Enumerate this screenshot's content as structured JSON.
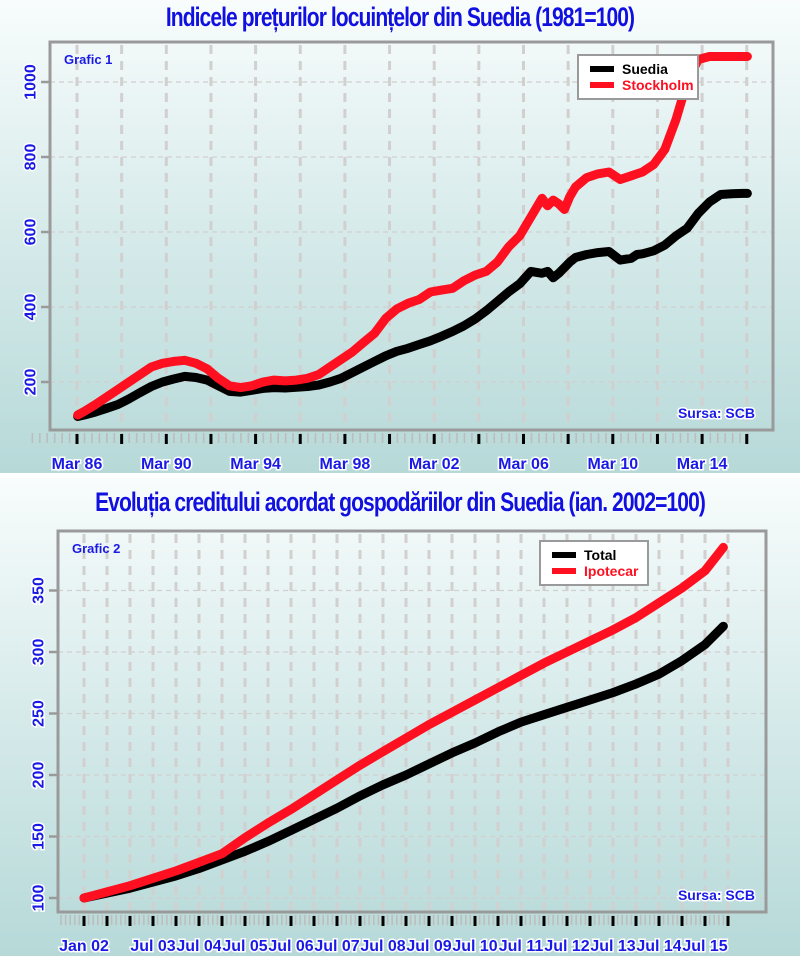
{
  "colors": {
    "series_black": "#000000",
    "series_red": "#ff1020",
    "title_blue": "#1010e0",
    "frame_gray": "#9a9a9a",
    "grid_gray": "#d2cfcf"
  },
  "chart_data": [
    {
      "type": "line",
      "title": "Indicele prețurilor locuințelor din Suedia (1981=100)",
      "panel_label": "Grafic 1",
      "source": "Sursa: SCB",
      "xlabel": "",
      "ylabel": "",
      "x_tick_labels": [
        "Mar 86",
        "Mar 90",
        "Mar 94",
        "Mar 98",
        "Mar 02",
        "Mar 06",
        "Mar 10",
        "Mar 14"
      ],
      "x_range": [
        1985.0,
        2016.75
      ],
      "y_ticks": [
        200,
        400,
        600,
        800,
        1000
      ],
      "y_tick_labels": [
        "200",
        "400",
        "600",
        "800",
        "1000"
      ],
      "ylim": [
        100,
        1100
      ],
      "grid": true,
      "legend_position": "top-right",
      "x": [
        1986.2,
        1986.5,
        1987,
        1987.5,
        1988,
        1988.5,
        1989,
        1989.5,
        1990,
        1990.5,
        1991,
        1991.5,
        1992,
        1992.5,
        1993,
        1993.5,
        1994,
        1994.5,
        1995,
        1995.5,
        1996,
        1996.5,
        1997,
        1997.5,
        1998,
        1998.5,
        1999,
        1999.5,
        2000,
        2000.5,
        2001,
        2001.5,
        2002,
        2002.5,
        2003,
        2003.5,
        2004,
        2004.5,
        2005,
        2005.5,
        2006,
        2006.5,
        2007,
        2007.25,
        2007.5,
        2007.75,
        2008,
        2008.25,
        2008.5,
        2009,
        2009.5,
        2010,
        2010.5,
        2011,
        2011.25,
        2011.5,
        2012,
        2012.5,
        2013,
        2013.5,
        2014,
        2014.5,
        2015,
        2015.5,
        2016,
        2016.2
      ],
      "series": [
        {
          "name": "Suedia",
          "color": "#000000",
          "values": [
            108,
            112,
            120,
            130,
            140,
            155,
            172,
            188,
            200,
            208,
            215,
            212,
            205,
            190,
            175,
            173,
            178,
            183,
            185,
            184,
            186,
            188,
            192,
            200,
            210,
            225,
            240,
            255,
            270,
            282,
            290,
            300,
            310,
            322,
            335,
            350,
            368,
            390,
            415,
            440,
            462,
            495,
            490,
            495,
            478,
            490,
            505,
            520,
            532,
            540,
            545,
            548,
            525,
            530,
            540,
            542,
            550,
            565,
            590,
            610,
            650,
            680,
            700,
            702,
            703,
            703
          ],
          "values_full": null
        },
        {
          "name": "Stockholm",
          "color": "#ff1020",
          "values": [
            112,
            122,
            140,
            160,
            180,
            200,
            220,
            240,
            250,
            255,
            258,
            250,
            235,
            210,
            190,
            185,
            190,
            200,
            205,
            203,
            205,
            210,
            220,
            240,
            260,
            280,
            305,
            330,
            370,
            395,
            410,
            420,
            440,
            445,
            450,
            470,
            485,
            495,
            520,
            560,
            590,
            640,
            690,
            670,
            685,
            675,
            660,
            695,
            720,
            745,
            755,
            760,
            740,
            750,
            755,
            760,
            780,
            820,
            900,
            1000,
            1060,
            1068,
            1068,
            1068,
            1068,
            1068
          ]
        }
      ]
    },
    {
      "type": "line",
      "title": "Evoluția creditului acordat gospodăriilor din Suedia (ian. 2002=100)",
      "panel_label": "Grafic 2",
      "source": "Sursa: SCB",
      "xlabel": "",
      "ylabel": "",
      "x_tick_labels": [
        "Jan 02",
        "Jul 03",
        "Jul 04",
        "Jul 05",
        "Jul 06",
        "Jul 07",
        "Jul 08",
        "Jul 09",
        "Jul 10",
        "Jul 11",
        "Jul 12",
        "Jul 13",
        "Jul 14",
        "Jul 15"
      ],
      "y_ticks": [
        100,
        150,
        200,
        250,
        300,
        350
      ],
      "y_tick_labels": [
        "100",
        "150",
        "200",
        "250",
        "300",
        "350"
      ],
      "ylim": [
        85,
        395
      ],
      "grid": true,
      "legend_position": "top-right",
      "x": [
        2002.0,
        2002.5,
        2003.0,
        2003.5,
        2004.0,
        2004.5,
        2005.0,
        2005.5,
        2006.0,
        2006.5,
        2007.0,
        2007.5,
        2008.0,
        2008.5,
        2009.0,
        2009.5,
        2010.0,
        2010.5,
        2011.0,
        2011.5,
        2012.0,
        2012.5,
        2013.0,
        2013.5,
        2014.0,
        2014.5,
        2015.0,
        2015.5,
        2015.9
      ],
      "series": [
        {
          "name": "Total",
          "color": "#000000",
          "values": [
            100,
            104,
            108,
            113,
            118,
            124,
            131,
            138,
            146,
            155,
            164,
            173,
            183,
            192,
            200,
            209,
            218,
            226,
            235,
            243,
            249,
            255,
            261,
            267,
            274,
            282,
            293,
            306,
            321
          ]
        },
        {
          "name": "Ipotecar",
          "color": "#ff1020",
          "values": [
            100,
            105,
            110,
            116,
            122,
            129,
            136,
            149,
            161,
            172,
            184,
            196,
            208,
            219,
            230,
            241,
            251,
            261,
            271,
            281,
            291,
            300,
            309,
            318,
            328,
            340,
            352,
            366,
            385
          ]
        }
      ]
    }
  ]
}
